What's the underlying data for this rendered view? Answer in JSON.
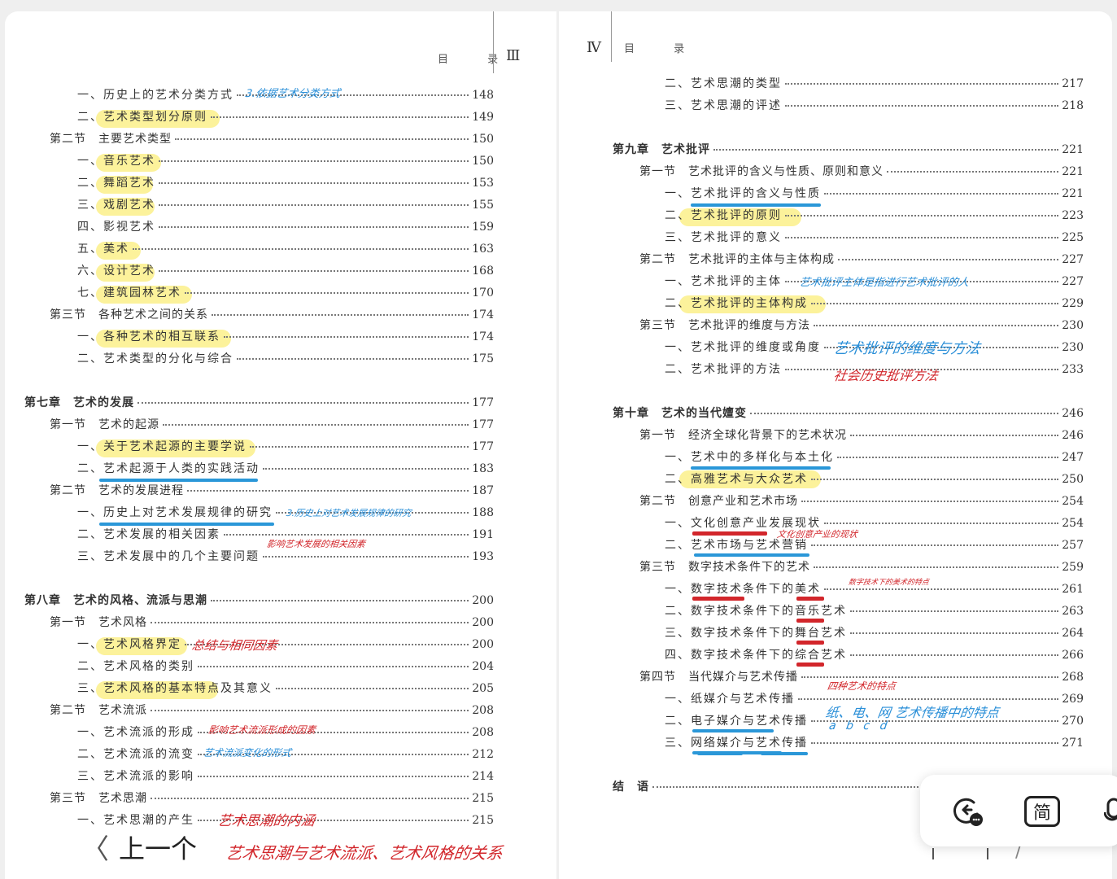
{
  "left_page": {
    "header": "目  录",
    "page_number": "Ⅲ",
    "rows": [
      {
        "label": "一、历史上的艺术分类方式",
        "page": "148"
      },
      {
        "label": "二、艺术类型划分原则",
        "page": "149"
      },
      {
        "label": "第二节　主要艺术类型",
        "page": "150"
      },
      {
        "label": "一、音乐艺术",
        "page": "150"
      },
      {
        "label": "二、舞蹈艺术",
        "page": "153"
      },
      {
        "label": "三、戏剧艺术",
        "page": "155"
      },
      {
        "label": "四、影视艺术",
        "page": "159"
      },
      {
        "label": "五、美术",
        "page": "163"
      },
      {
        "label": "六、设计艺术",
        "page": "168"
      },
      {
        "label": "七、建筑园林艺术",
        "page": "170"
      },
      {
        "label": "第三节　各种艺术之间的关系",
        "page": "174"
      },
      {
        "label": "一、各种艺术的相互联系",
        "page": "174"
      },
      {
        "label": "二、艺术类型的分化与综合",
        "page": "175"
      },
      {
        "label": "第七章　艺术的发展",
        "page": "177"
      },
      {
        "label": "第一节　艺术的起源",
        "page": "177"
      },
      {
        "label": "一、关于艺术起源的主要学说",
        "page": "177"
      },
      {
        "label": "二、艺术起源于人类的实践活动",
        "page": "183"
      },
      {
        "label": "第二节　艺术的发展进程",
        "page": "187"
      },
      {
        "label": "一、历史上对艺术发展规律的研究",
        "page": "188"
      },
      {
        "label": "二、艺术发展的相关因素",
        "page": "191"
      },
      {
        "label": "三、艺术发展中的几个主要问题",
        "page": "193"
      },
      {
        "label": "第八章　艺术的风格、流派与思潮",
        "page": "200"
      },
      {
        "label": "第一节　艺术风格",
        "page": "200"
      },
      {
        "label": "一、艺术风格界定",
        "page": "200"
      },
      {
        "label": "二、艺术风格的类别",
        "page": "204"
      },
      {
        "label": "三、艺术风格的基本特点及其意义",
        "page": "205"
      },
      {
        "label": "第二节　艺术流派",
        "page": "208"
      },
      {
        "label": "一、艺术流派的形成",
        "page": "208"
      },
      {
        "label": "二、艺术流派的流变",
        "page": "212"
      },
      {
        "label": "三、艺术流派的影响",
        "page": "214"
      },
      {
        "label": "第三节　艺术思潮",
        "page": "215"
      },
      {
        "label": "一、艺术思潮的产生",
        "page": "215"
      }
    ],
    "notes": {
      "n1": "3.依据艺术分类方式",
      "n2": "总结与相同因素",
      "n3": "3.历史上对艺术发展规律的研究",
      "n4": "影响艺术发展的相关因素",
      "n5": "影响艺术流派形成的因素",
      "n6": "艺术流派变化的形式",
      "n7": "艺术思潮的内涵",
      "n8": "艺术思潮与艺术流派、艺术风格的关系"
    }
  },
  "right_page": {
    "header": "目  录",
    "page_number": "Ⅳ",
    "rows": [
      {
        "label": "二、艺术思潮的类型",
        "page": "217"
      },
      {
        "label": "三、艺术思潮的评述",
        "page": "218"
      },
      {
        "label": "第九章　艺术批评",
        "page": "221"
      },
      {
        "label": "第一节　艺术批评的含义与性质、原则和意义",
        "page": "221"
      },
      {
        "label": "一、艺术批评的含义与性质",
        "page": "221"
      },
      {
        "label": "二、艺术批评的原则",
        "page": "223"
      },
      {
        "label": "三、艺术批评的意义",
        "page": "225"
      },
      {
        "label": "第二节　艺术批评的主体与主体构成",
        "page": "227"
      },
      {
        "label": "一、艺术批评的主体",
        "page": "227"
      },
      {
        "label": "二、艺术批评的主体构成",
        "page": "229"
      },
      {
        "label": "第三节　艺术批评的维度与方法",
        "page": "230"
      },
      {
        "label": "一、艺术批评的维度或角度",
        "page": "230"
      },
      {
        "label": "二、艺术批评的方法",
        "page": "233"
      },
      {
        "label": "第十章　艺术的当代嬗变",
        "page": "246"
      },
      {
        "label": "第一节　经济全球化背景下的艺术状况",
        "page": "246"
      },
      {
        "label": "一、艺术中的多样化与本土化",
        "page": "247"
      },
      {
        "label": "二、高雅艺术与大众艺术",
        "page": "250"
      },
      {
        "label": "第二节　创意产业和艺术市场",
        "page": "254"
      },
      {
        "label": "一、文化创意产业发展现状",
        "page": "254"
      },
      {
        "label": "二、艺术市场与艺术营销",
        "page": "257"
      },
      {
        "label": "第三节　数字技术条件下的艺术",
        "page": "259"
      },
      {
        "label": "一、数字技术条件下的美术",
        "page": "261"
      },
      {
        "label": "二、数字技术条件下的音乐艺术",
        "page": "263"
      },
      {
        "label": "三、数字技术条件下的舞台艺术",
        "page": "264"
      },
      {
        "label": "四、数字技术条件下的综合艺术",
        "page": "266"
      },
      {
        "label": "第四节　当代媒介与艺术传播",
        "page": "268"
      },
      {
        "label": "一、纸媒介与艺术传播",
        "page": "269"
      },
      {
        "label": "二、电子媒介与艺术传播",
        "page": "270"
      },
      {
        "label": "三、网络媒介与艺术传播",
        "page": "271"
      },
      {
        "label": "结　语",
        "page": ""
      }
    ],
    "notes": {
      "n1": "艺术批评主体是指进行艺术批评的人",
      "n2": "艺术批评的维度与方法",
      "n3": "社会历史批评方法",
      "n4": "文化创意产业的现状",
      "n5": "数字技术下的美术的特点",
      "n6": "四种艺术的特点",
      "n7": "纸、电、网 艺术传播中的特点",
      "n8": "a  b  c     d"
    }
  },
  "nav": {
    "prev_label": "上一个",
    "prev_chevron": "〈"
  },
  "toolbar": {
    "simplified_label": "简"
  },
  "colors": {
    "highlight": "#fbf08a",
    "blue_ink": "#2a97d8",
    "red_ink": "#d2262b"
  }
}
